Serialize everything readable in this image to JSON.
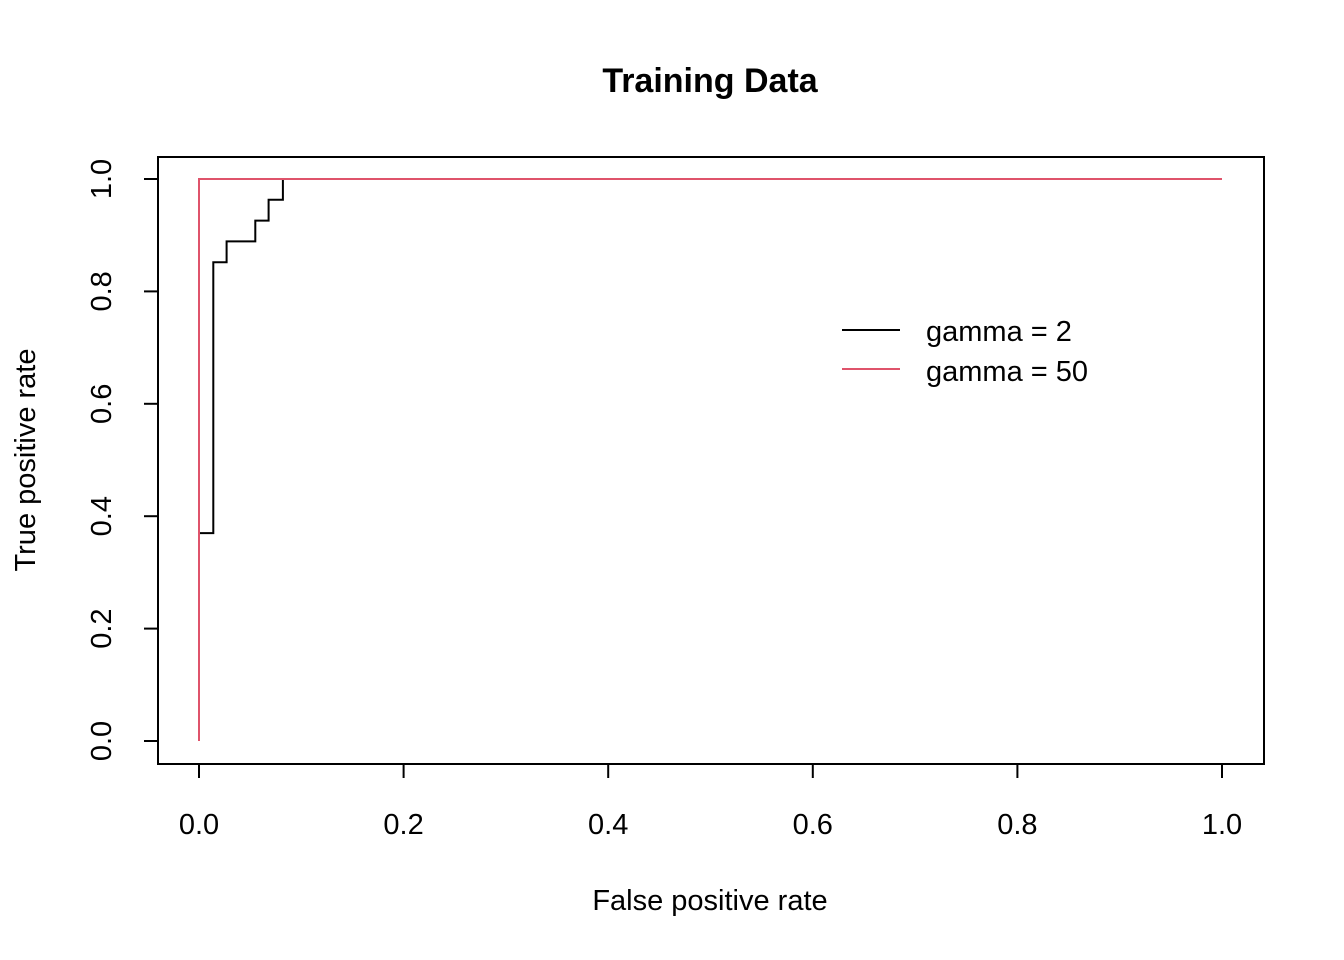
{
  "chart_data": {
    "type": "line",
    "title": "Training Data",
    "xlabel": "False positive rate",
    "ylabel": "True positive rate",
    "xlim": [
      0,
      1
    ],
    "ylim": [
      0,
      1
    ],
    "xticks": [
      "0.0",
      "0.2",
      "0.4",
      "0.6",
      "0.8",
      "1.0"
    ],
    "yticks": [
      "0.0",
      "0.2",
      "0.4",
      "0.6",
      "0.8",
      "1.0"
    ],
    "grid": false,
    "legend_position": "right",
    "series": [
      {
        "name": "gamma = 2",
        "color": "#000000",
        "x": [
          0,
          0,
          0.014,
          0.014,
          0.027,
          0.027,
          0.055,
          0.055,
          0.068,
          0.068,
          0.082,
          0.082,
          1.0
        ],
        "y": [
          0,
          0.37,
          0.37,
          0.852,
          0.852,
          0.889,
          0.889,
          0.926,
          0.926,
          0.963,
          0.963,
          1.0,
          1.0
        ]
      },
      {
        "name": "gamma = 50",
        "color": "#DF536B",
        "x": [
          0,
          0,
          1.0
        ],
        "y": [
          0,
          1.0,
          1.0
        ]
      }
    ]
  }
}
